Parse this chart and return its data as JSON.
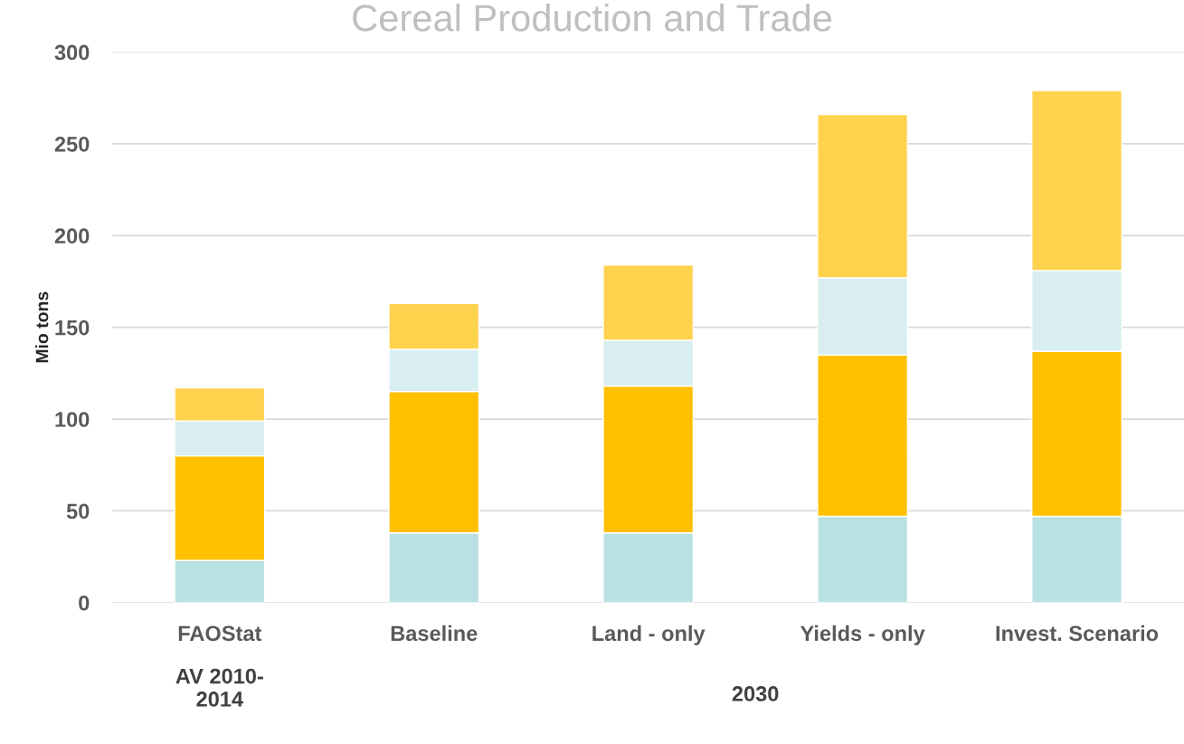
{
  "chart_data": {
    "type": "bar",
    "title": "Cereal Production and Trade",
    "ylabel": "Mio tons",
    "categories": [
      "FAOStat",
      "Baseline",
      "Land - only",
      "Yields - only",
      "Invest. Scenario"
    ],
    "stacked": true,
    "series": [
      {
        "color": "#b9e0e3",
        "values": [
          23,
          38,
          38,
          47,
          47
        ]
      },
      {
        "color": "#ffc000",
        "values": [
          57,
          77,
          80,
          88,
          90
        ]
      },
      {
        "color": "#d8eef0",
        "values": [
          19,
          23,
          25,
          42,
          44
        ]
      },
      {
        "color": "#ffd24d",
        "values": [
          18,
          25,
          41,
          89,
          98
        ]
      }
    ],
    "ylim": [
      0,
      300
    ],
    "yticks": [
      0,
      50,
      100,
      150,
      200,
      250,
      300
    ],
    "grid": "y",
    "legend": false,
    "annotations": [
      "AV 2010-\n2014",
      "2030"
    ]
  }
}
